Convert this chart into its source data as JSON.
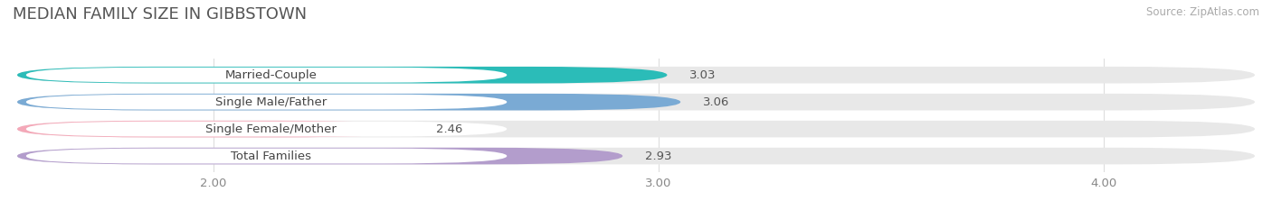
{
  "title": "MEDIAN FAMILY SIZE IN GIBBSTOWN",
  "source": "Source: ZipAtlas.com",
  "categories": [
    "Married-Couple",
    "Single Male/Father",
    "Single Female/Mother",
    "Total Families"
  ],
  "values": [
    3.03,
    3.06,
    2.46,
    2.93
  ],
  "bar_colors": [
    "#2bbcb8",
    "#7aaad4",
    "#f4a8b8",
    "#b39dcc"
  ],
  "xlim": [
    1.55,
    4.35
  ],
  "xticks": [
    2.0,
    3.0,
    4.0
  ],
  "xtick_labels": [
    "2.00",
    "3.00",
    "4.00"
  ],
  "value_fontsize": 9.5,
  "label_fontsize": 9.5,
  "title_fontsize": 13,
  "bar_height": 0.62,
  "background_color": "#ffffff",
  "bar_bg_color": "#e8e8e8",
  "label_box_color": "#ffffff",
  "grid_color": "#dddddd",
  "text_color": "#555555",
  "label_text_color": "#444444"
}
